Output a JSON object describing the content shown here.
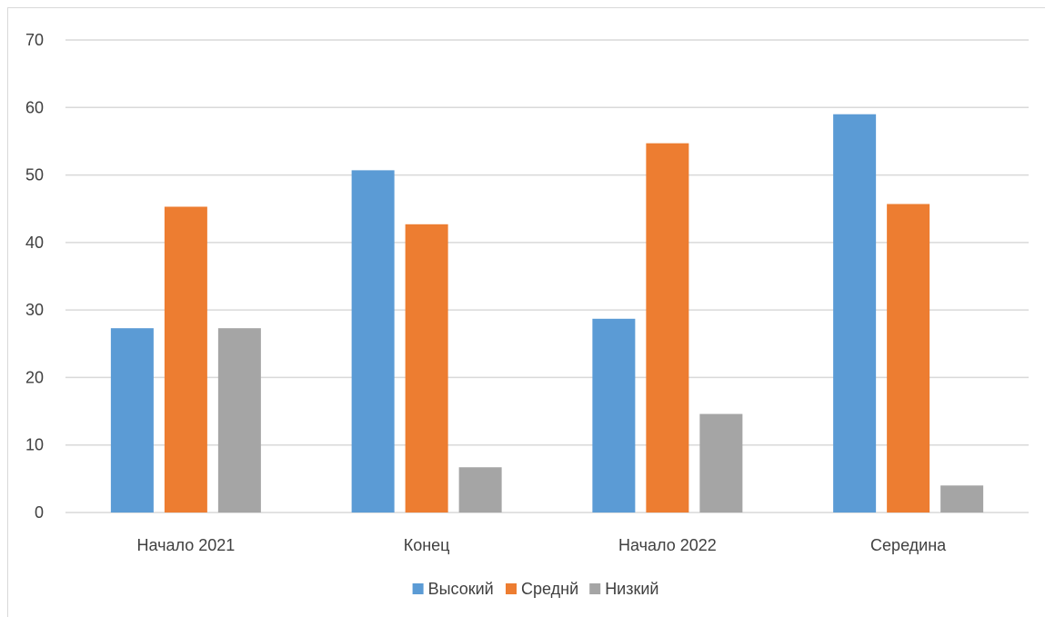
{
  "chart_data": {
    "type": "bar",
    "title": "",
    "xlabel": "",
    "ylabel": "",
    "categories": [
      "Начало 2021",
      "Конец",
      "Начало 2022",
      "Середина"
    ],
    "series": [
      {
        "name": "Высокий",
        "values": [
          27.3,
          50.7,
          28.7,
          59.0
        ],
        "color": "#5b9bd5"
      },
      {
        "name": "Среднй",
        "values": [
          45.3,
          42.7,
          54.7,
          45.7
        ],
        "color": "#ed7d31"
      },
      {
        "name": "Низкий",
        "values": [
          27.3,
          6.7,
          14.6,
          4.0
        ],
        "color": "#a5a5a5"
      }
    ],
    "ylim": [
      0,
      70
    ],
    "yticks": [
      0,
      10,
      20,
      30,
      40,
      50,
      60,
      70
    ],
    "grid": true,
    "legend_position": "bottom",
    "gridline_color": "#d9d9d9",
    "text_color": "#404040"
  }
}
